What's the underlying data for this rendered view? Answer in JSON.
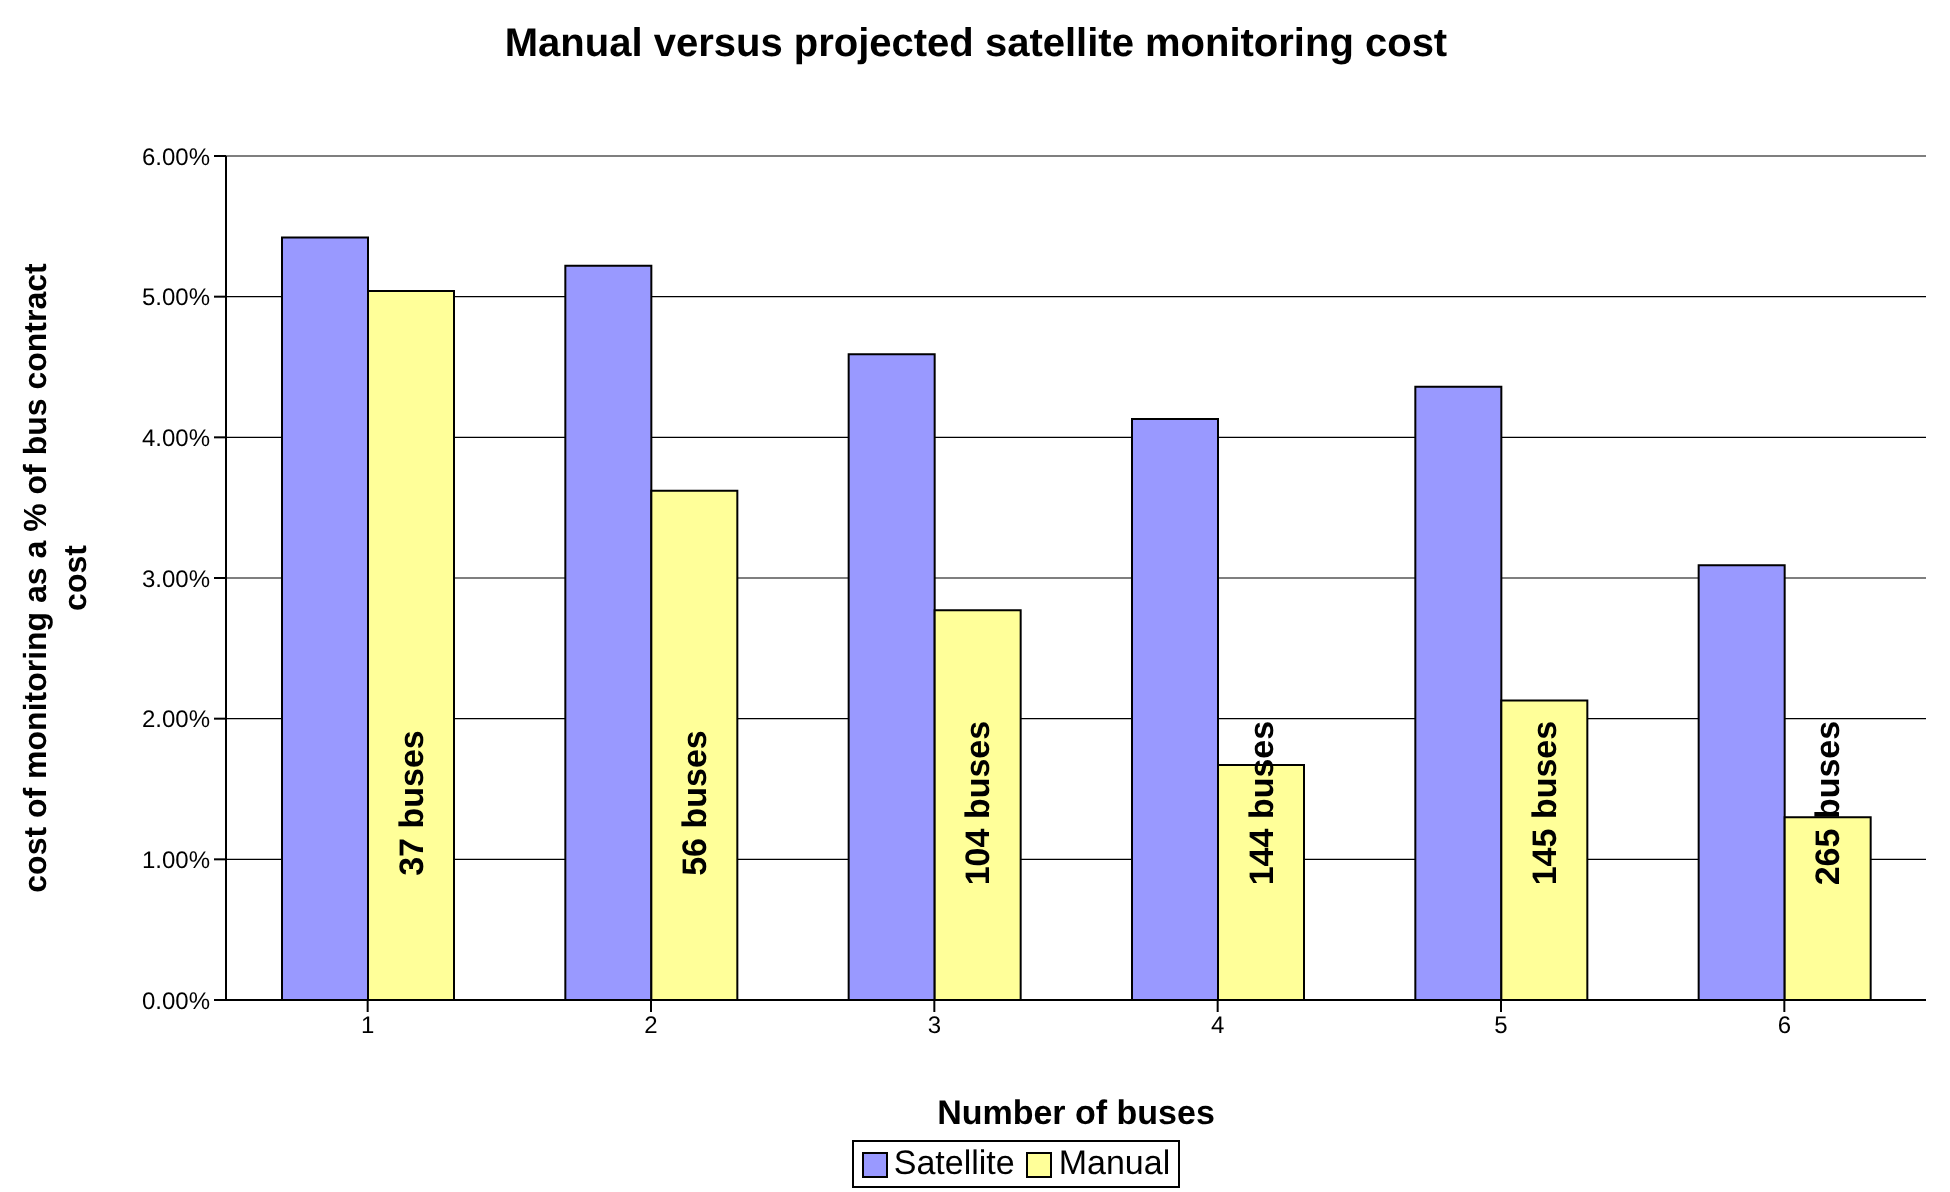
{
  "chart_data": {
    "type": "bar",
    "title": "Manual versus projected satellite monitoring cost",
    "xlabel": "Number of buses",
    "ylabel": "cost of monitoring as a % of bus contract cost",
    "categories": [
      "1",
      "2",
      "3",
      "4",
      "5",
      "6"
    ],
    "series": [
      {
        "name": "Satellite",
        "color": "#9999ff",
        "values": [
          5.42,
          5.22,
          4.59,
          4.13,
          4.36,
          3.09
        ]
      },
      {
        "name": "Manual",
        "color": "#ffff99",
        "values": [
          5.04,
          3.62,
          2.77,
          1.67,
          2.13,
          1.3
        ]
      }
    ],
    "ylim": [
      0,
      6
    ],
    "yticks": [
      {
        "value": 0,
        "label": "0.00%"
      },
      {
        "value": 1,
        "label": "1.00%"
      },
      {
        "value": 2,
        "label": "2.00%"
      },
      {
        "value": 3,
        "label": "3.00%"
      },
      {
        "value": 4,
        "label": "4.00%"
      },
      {
        "value": 5,
        "label": "5.00%"
      },
      {
        "value": 6,
        "label": "6.00%"
      }
    ],
    "grid": "y",
    "legend": "bottom",
    "annotations": [
      {
        "text": "37 buses",
        "x": "1",
        "y": 1.4
      },
      {
        "text": "56 buses",
        "x": "2",
        "y": 1.4
      },
      {
        "text": "104 buses",
        "x": "3",
        "y": 1.4
      },
      {
        "text": "144 buses",
        "x": "4",
        "y": 1.4
      },
      {
        "text": "145 buses",
        "x": "5",
        "y": 1.4
      },
      {
        "text": "265 buses",
        "x": "6",
        "y": 1.4
      }
    ]
  }
}
